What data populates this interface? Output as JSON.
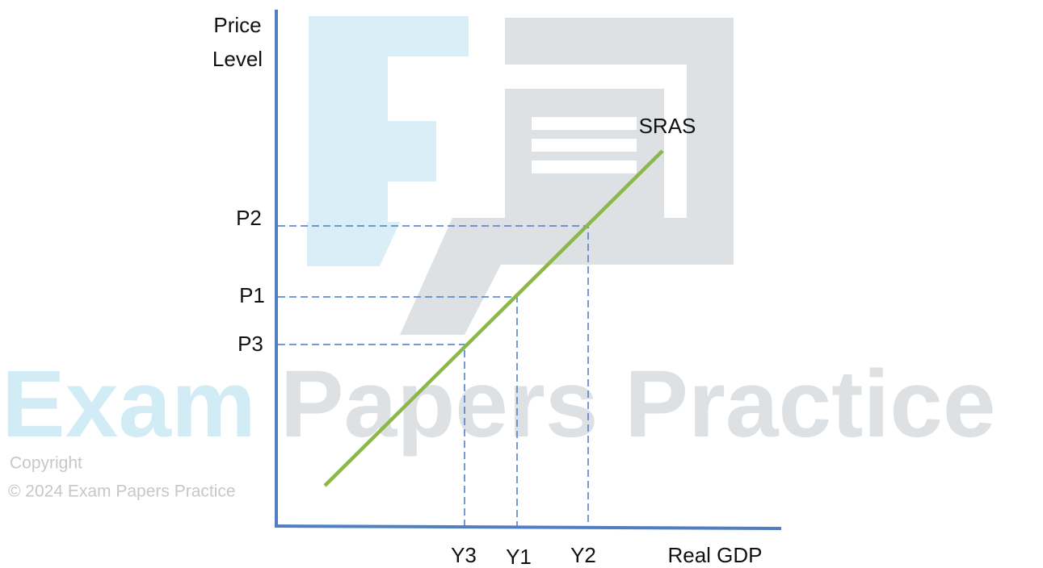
{
  "y_axis_label": {
    "lines": [
      "Price",
      "Level"
    ]
  },
  "x_axis_label": "Real GDP",
  "curve_label": "SRAS",
  "price_levels": [
    "P2",
    "P1",
    "P3"
  ],
  "output_levels": [
    "Y3",
    "Y1",
    "Y2"
  ],
  "watermark": {
    "brand_first": "Exam",
    "brand_rest": "Papers Practice",
    "copyright": "Copyright",
    "notice": "© 2024 Exam Papers Practice"
  }
}
